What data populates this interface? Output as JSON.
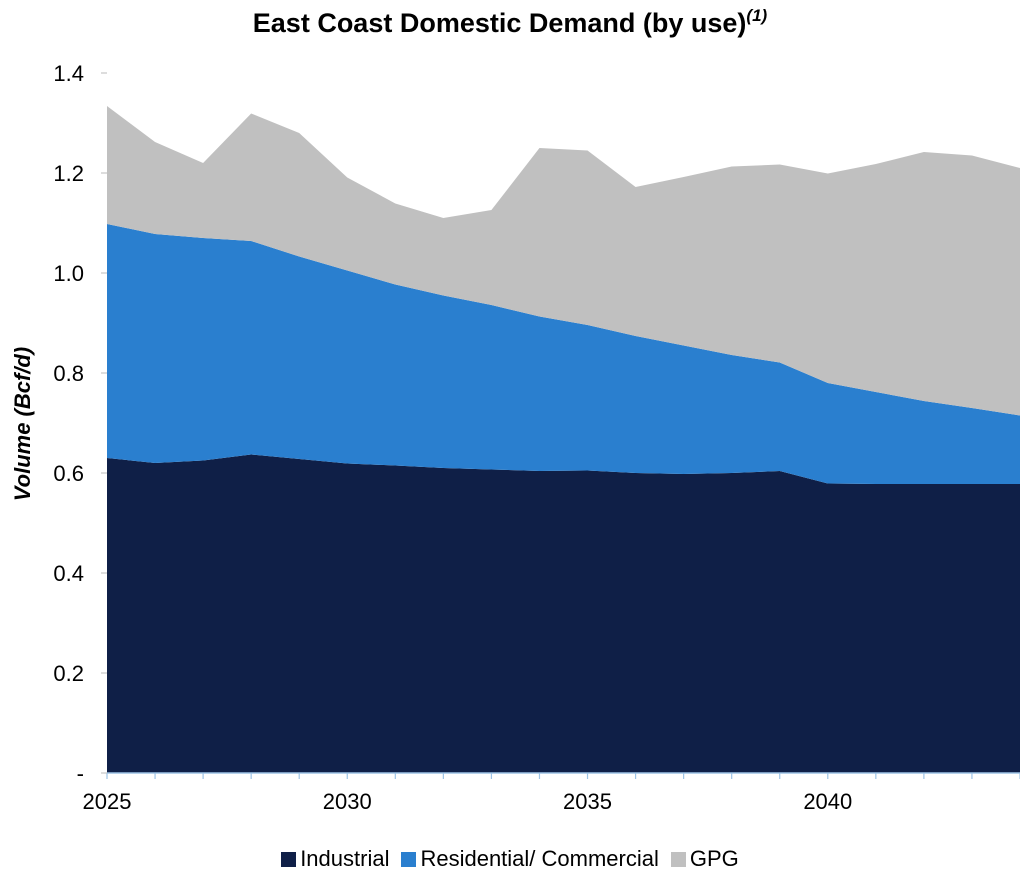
{
  "chart_data": {
    "type": "area",
    "stacked": true,
    "title": "East Coast Domestic Demand (by use)",
    "title_superscript": "(1)",
    "ylabel": "Volume (Bcf/d)",
    "xlabel": "",
    "ylim": [
      0,
      1.4
    ],
    "xlim": [
      2025,
      2044
    ],
    "y_ticks": [
      0,
      0.2,
      0.4,
      0.6,
      0.8,
      1.0,
      1.2,
      1.4
    ],
    "y_tick_labels": [
      "-",
      "0.2",
      "0.4",
      "0.6",
      "0.8",
      "1.0",
      "1.2",
      "1.4"
    ],
    "x_ticks": [
      2025,
      2030,
      2035,
      2040
    ],
    "x_tick_labels": [
      "2025",
      "2030",
      "2035",
      "2040"
    ],
    "grid": false,
    "legend_position": "bottom",
    "x": [
      2025,
      2026,
      2027,
      2028,
      2029,
      2030,
      2031,
      2032,
      2033,
      2034,
      2035,
      2036,
      2037,
      2038,
      2039,
      2040,
      2041,
      2042,
      2043,
      2044
    ],
    "series": [
      {
        "name": "Industrial",
        "color": "#0f1f47",
        "values": [
          0.63,
          0.62,
          0.625,
          0.637,
          0.628,
          0.619,
          0.615,
          0.61,
          0.607,
          0.604,
          0.605,
          0.6,
          0.598,
          0.6,
          0.604,
          0.579,
          0.578,
          0.578,
          0.578,
          0.578
        ]
      },
      {
        "name": "Residential/ Commercial",
        "color": "#2a7fcf",
        "values": [
          0.468,
          0.458,
          0.445,
          0.427,
          0.405,
          0.386,
          0.362,
          0.345,
          0.329,
          0.309,
          0.291,
          0.274,
          0.257,
          0.236,
          0.217,
          0.201,
          0.184,
          0.166,
          0.152,
          0.137
        ]
      },
      {
        "name": "GPG",
        "color": "#c0c0c0",
        "values": [
          0.236,
          0.184,
          0.15,
          0.255,
          0.247,
          0.186,
          0.162,
          0.155,
          0.19,
          0.337,
          0.349,
          0.298,
          0.337,
          0.377,
          0.396,
          0.419,
          0.456,
          0.498,
          0.505,
          0.495
        ]
      }
    ]
  }
}
